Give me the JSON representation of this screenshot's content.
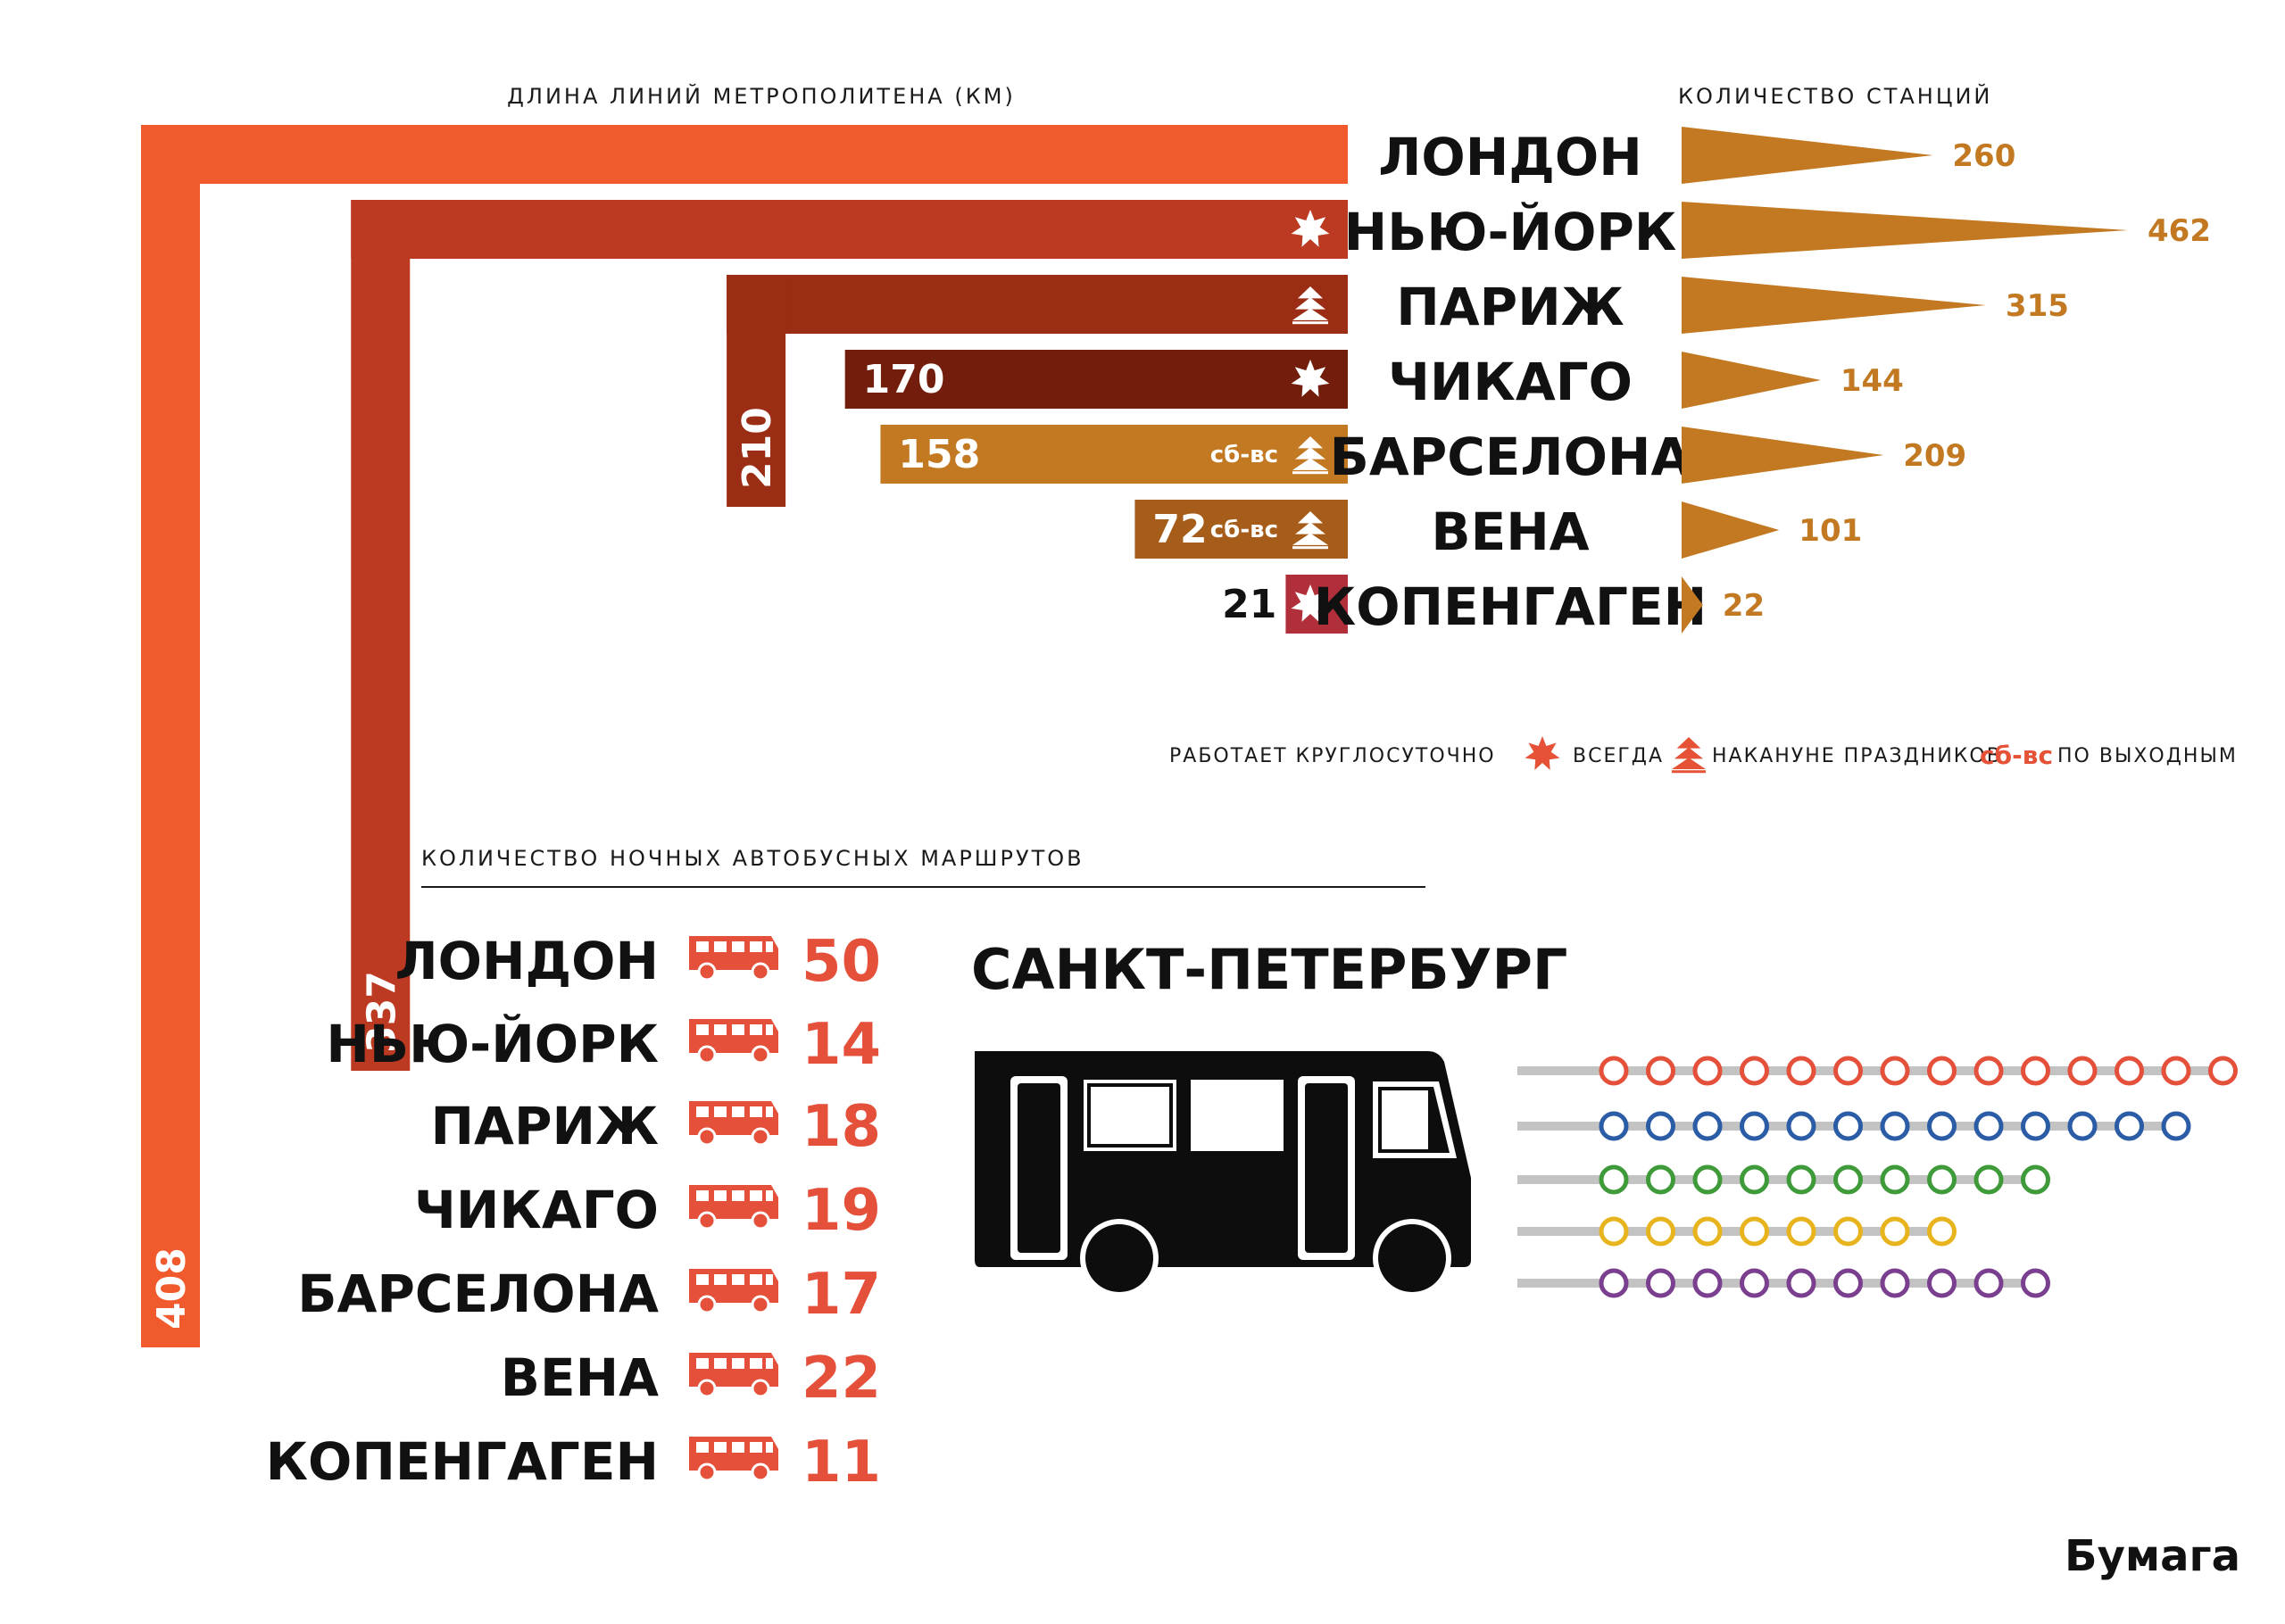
{
  "colors": {
    "always": "#e65236",
    "station": "#c27922",
    "bus": "#e4503a",
    "ink": "#111111",
    "track": "#c3c3c3"
  },
  "metro_length": {
    "title": "ДЛИНА ЛИНИЙ МЕТРОПОЛИТЕНА (КМ)"
  },
  "stations_count": {
    "title": "КОЛИЧЕСТВО СТАНЦИЙ"
  },
  "legend": {
    "title": "РАБОТАЕТ КРУГЛОСУТОЧНО",
    "always": "ВСЕГДА",
    "holidays": "НАКАНУНЕ ПРАЗДНИКОВ",
    "weekend_tag": "сб-вс",
    "weekends": "ПО ВЫХОДНЫМ"
  },
  "night_bus": {
    "title": "КОЛИЧЕСТВО НОЧНЫХ АВТОБУСНЫХ МАРШРУТОВ"
  },
  "spb": {
    "title": "САНКТ-ПЕТЕРБУРГ"
  },
  "spb_lines": [
    {
      "color": "#e4503a",
      "stations": 14
    },
    {
      "color": "#2b5ca6",
      "stations": 13
    },
    {
      "color": "#3f9a3a",
      "stations": 10
    },
    {
      "color": "#e8b41d",
      "stations": 8
    },
    {
      "color": "#7b3f8f",
      "stations": 10
    }
  ],
  "brand": {
    "logo": "Бумага"
  },
  "chart_data": [
    {
      "type": "bar",
      "title": "ДЛИНА ЛИНИЙ МЕТРОПОЛИТЕНА (КМ)",
      "unit": "км",
      "categories": [
        "ЛОНДОН",
        "НЬЮ-ЙОРК",
        "ПАРИЖ",
        "ЧИКАГО",
        "БАРСЕЛОНА",
        "ВЕНА",
        "КОПЕНГАГЕН"
      ],
      "values": [
        408,
        337,
        210,
        170,
        158,
        72,
        21
      ],
      "value_labels": [
        "408",
        "337",
        "210",
        "170",
        "158",
        "72",
        "21"
      ],
      "round_the_clock": [
        "",
        "always",
        "holidays",
        "always",
        "weekend-holidays",
        "weekend-holidays",
        "always"
      ],
      "bar_colors": [
        "#f05a2c",
        "#bd3a22",
        "#9a2d14",
        "#731e0c",
        "#c27922",
        "#a65d1a",
        "#b12e3b"
      ]
    },
    {
      "type": "bar",
      "title": "КОЛИЧЕСТВО СТАНЦИЙ",
      "categories": [
        "ЛОНДОН",
        "НЬЮ-ЙОРК",
        "ПАРИЖ",
        "ЧИКАГО",
        "БАРСЕЛОНА",
        "ВЕНА",
        "КОПЕНГАГЕН"
      ],
      "values": [
        260,
        462,
        315,
        144,
        209,
        101,
        22
      ],
      "value_labels": [
        "260",
        "462",
        "315",
        "144",
        "209",
        "101",
        "22"
      ]
    },
    {
      "type": "bar",
      "title": "КОЛИЧЕСТВО НОЧНЫХ АВТОБУСНЫХ МАРШРУТОВ",
      "categories": [
        "ЛОНДОН",
        "НЬЮ-ЙОРК",
        "ПАРИЖ",
        "ЧИКАГО",
        "БАРСЕЛОНА",
        "ВЕНА",
        "КОПЕНГАГЕН"
      ],
      "values": [
        50,
        14,
        18,
        19,
        17,
        22,
        11
      ],
      "value_labels": [
        "50",
        "14",
        "18",
        "19",
        "17",
        "22",
        "11"
      ]
    }
  ]
}
